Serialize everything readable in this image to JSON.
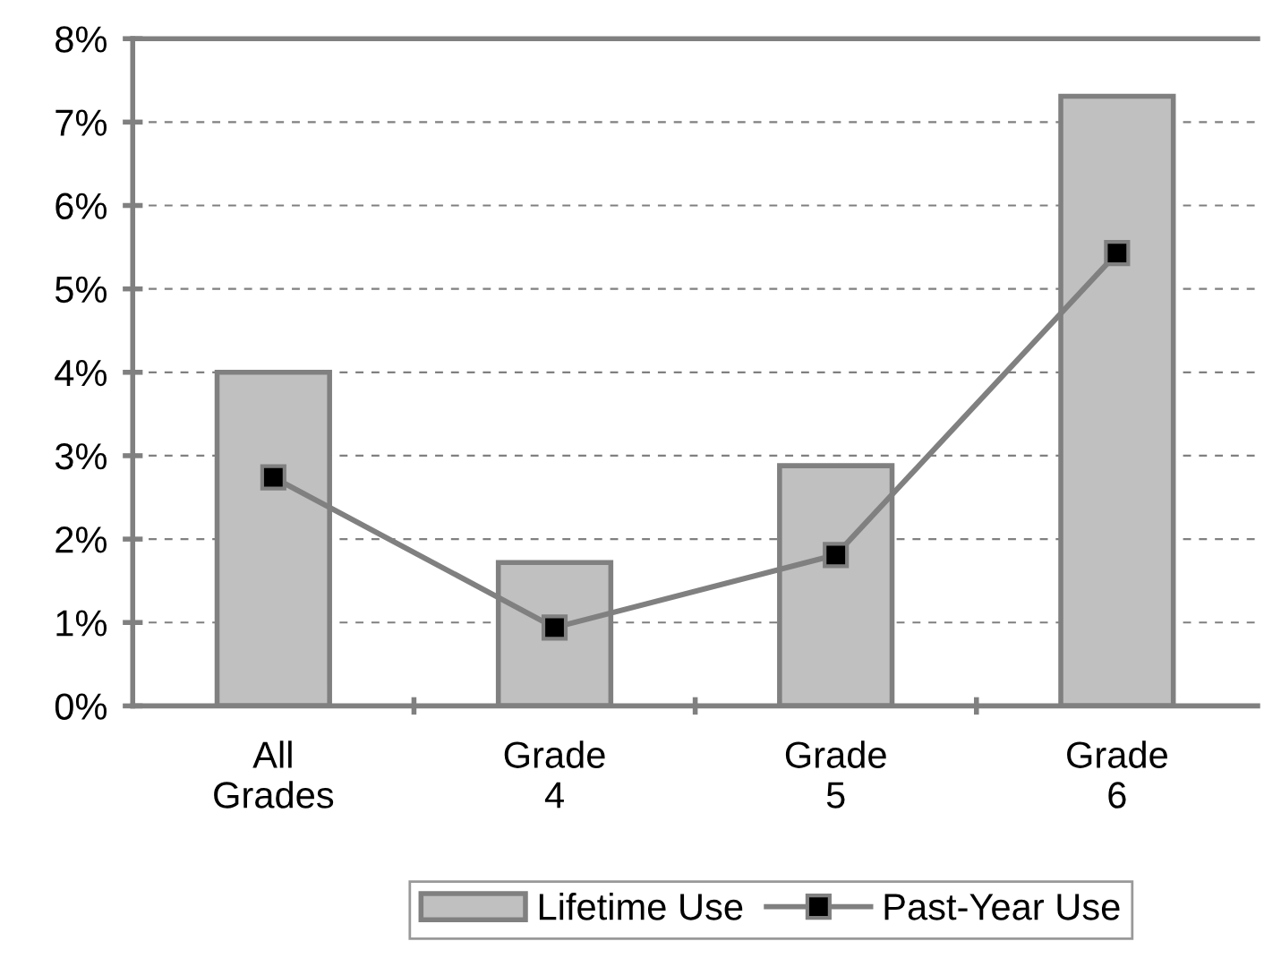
{
  "chart_data": {
    "type": "bar",
    "categories": [
      "All\nGrades",
      "Grade\n4",
      "Grade\n5",
      "Grade\n6"
    ],
    "series": [
      {
        "name": "Lifetime Use",
        "color": "#c0c0c0",
        "values": [
          4.0,
          1.72,
          2.88,
          7.31
        ]
      },
      {
        "name": "Past-Year Use",
        "type": "line",
        "color": "#808080",
        "values": [
          2.74,
          0.94,
          1.81,
          5.43
        ],
        "marker": "square"
      }
    ],
    "ylim": [
      0,
      8
    ],
    "yticks": [
      {
        "value": 0,
        "label": "0%"
      },
      {
        "value": 1,
        "label": "1%"
      },
      {
        "value": 2,
        "label": "2%"
      },
      {
        "value": 3,
        "label": "3%"
      },
      {
        "value": 4,
        "label": "4%"
      },
      {
        "value": 5,
        "label": "5%"
      },
      {
        "value": 6,
        "label": "6%"
      },
      {
        "value": 7,
        "label": "7%"
      },
      {
        "value": 8,
        "label": "8%"
      }
    ],
    "grid": "y",
    "legend": "bottom"
  }
}
